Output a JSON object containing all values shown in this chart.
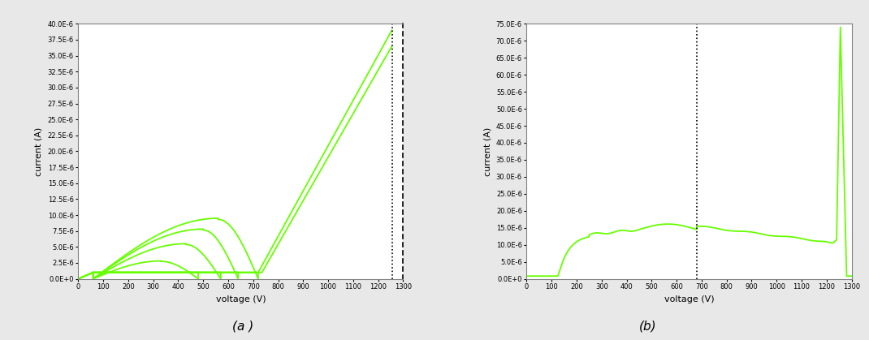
{
  "fig_width": 10.7,
  "fig_height": 4.19,
  "dpi": 100,
  "line_color": "#66FF00",
  "line_width": 1.3,
  "bg_color": "#e8e8e8",
  "plot_bg": "#ffffff",
  "xlabel": "voltage (V)",
  "ylabel": "current (A)",
  "xlim": [
    0,
    1300
  ],
  "label_a": "(a )",
  "label_b": "(b)",
  "plot_a": {
    "ylim": [
      0,
      4e-05
    ],
    "yticks": [
      0,
      2.5e-06,
      5e-06,
      7.5e-06,
      1e-05,
      1.25e-05,
      1.5e-05,
      1.75e-05,
      2e-05,
      2.25e-05,
      2.5e-05,
      2.75e-05,
      3e-05,
      3.25e-05,
      3.5e-05,
      3.75e-05,
      4e-05
    ],
    "ytick_labels": [
      "0.0E+0",
      "2.5E-6",
      "5.0E-6",
      "7.5E-6",
      "10.0E-6",
      "12.5E-6",
      "15.0E-6",
      "17.5E-6",
      "20.0E-6",
      "22.5E-6",
      "25.0E-6",
      "27.5E-6",
      "30.0E-6",
      "32.5E-6",
      "35.0E-6",
      "37.5E-6",
      "40.0E-6"
    ],
    "xticks": [
      0,
      100,
      200,
      300,
      400,
      500,
      600,
      700,
      800,
      900,
      1000,
      1100,
      1200,
      1300
    ],
    "vline_x": 1255
  },
  "plot_b": {
    "ylim": [
      0,
      7.5e-05
    ],
    "yticks": [
      0,
      5e-06,
      1e-05,
      1.5e-05,
      2e-05,
      2.5e-05,
      3e-05,
      3.5e-05,
      4e-05,
      4.5e-05,
      5e-05,
      5.5e-05,
      6e-05,
      6.5e-05,
      7e-05,
      7.5e-05
    ],
    "ytick_labels": [
      "0.0E+0",
      "5.0E-6",
      "10.0E-6",
      "15.0E-6",
      "20.0E-6",
      "25.0E-6",
      "30.0E-6",
      "35.0E-6",
      "40.0E-6",
      "45.0E-6",
      "50.0E-6",
      "55.0E-6",
      "60.0E-6",
      "65.0E-6",
      "70.0E-6",
      "75.0E-6"
    ],
    "xticks": [
      0,
      100,
      200,
      300,
      400,
      500,
      600,
      700,
      800,
      900,
      1000,
      1100,
      1200,
      1300
    ],
    "vline_x": 680
  }
}
